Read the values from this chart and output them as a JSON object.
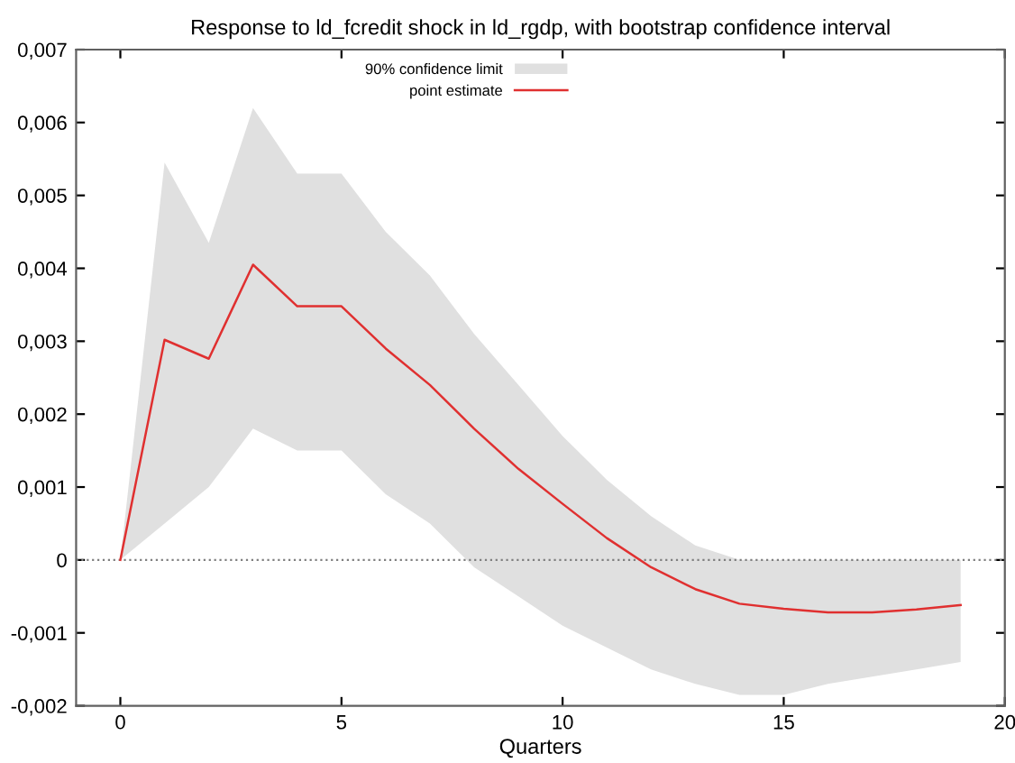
{
  "chart_data": {
    "type": "line",
    "title": "Response to ld_fcredit shock in ld_rgdp, with bootstrap confidence interval",
    "xlabel": "Quarters",
    "x": [
      0,
      1,
      2,
      3,
      4,
      5,
      6,
      7,
      8,
      9,
      10,
      11,
      12,
      13,
      14,
      15,
      16,
      17,
      18,
      19
    ],
    "annotations": [
      "90% confidence limit"
    ],
    "series": [
      {
        "name": "point estimate",
        "color": "#e03030",
        "values": [
          0,
          0.00302,
          0.00276,
          0.00405,
          0.00348,
          0.00348,
          0.0029,
          0.0024,
          0.0018,
          0.00125,
          0.00077,
          0.0003,
          -0.0001,
          -0.0004,
          -0.0006,
          -0.00067,
          -0.00072,
          -0.00072,
          -0.00068,
          -0.00062
        ],
        "lower": [
          0,
          0.0005,
          0.001,
          0.0018,
          0.0015,
          0.0015,
          0.0009,
          0.0005,
          -0.0001,
          -0.0005,
          -0.0009,
          -0.0012,
          -0.0015,
          -0.0017,
          -0.00185,
          -0.00185,
          -0.0017,
          -0.0016,
          -0.0015,
          -0.0014
        ],
        "upper": [
          0,
          0.00545,
          0.00435,
          0.0062,
          0.0053,
          0.0053,
          0.0045,
          0.0039,
          0.0031,
          0.0024,
          0.0017,
          0.0011,
          0.0006,
          0.0002,
          0.0,
          0.0,
          0.0,
          0.0,
          0.0,
          0.0
        ]
      }
    ],
    "xlim": [
      -1,
      20
    ],
    "xticks": [
      0,
      5,
      10,
      15,
      20
    ],
    "ylim": [
      -0.002,
      0.007
    ],
    "yticks": [
      {
        "value": -0.002,
        "label": "-0,002"
      },
      {
        "value": -0.001,
        "label": "-0,001"
      },
      0,
      {
        "value": 0.001,
        "label": "0,001"
      },
      {
        "value": 0.002,
        "label": "0,002"
      },
      {
        "value": 0.003,
        "label": "0,003"
      },
      {
        "value": 0.004,
        "label": "0,004"
      },
      {
        "value": 0.005,
        "label": "0,005"
      },
      {
        "value": 0.006,
        "label": "0,006"
      },
      {
        "value": 0.007,
        "label": "0,007"
      }
    ],
    "ref_lines": [
      {
        "axis": "y",
        "value": 0,
        "color": "#808080",
        "line_style": "dotted"
      }
    ],
    "legend": "top",
    "grid": false
  }
}
